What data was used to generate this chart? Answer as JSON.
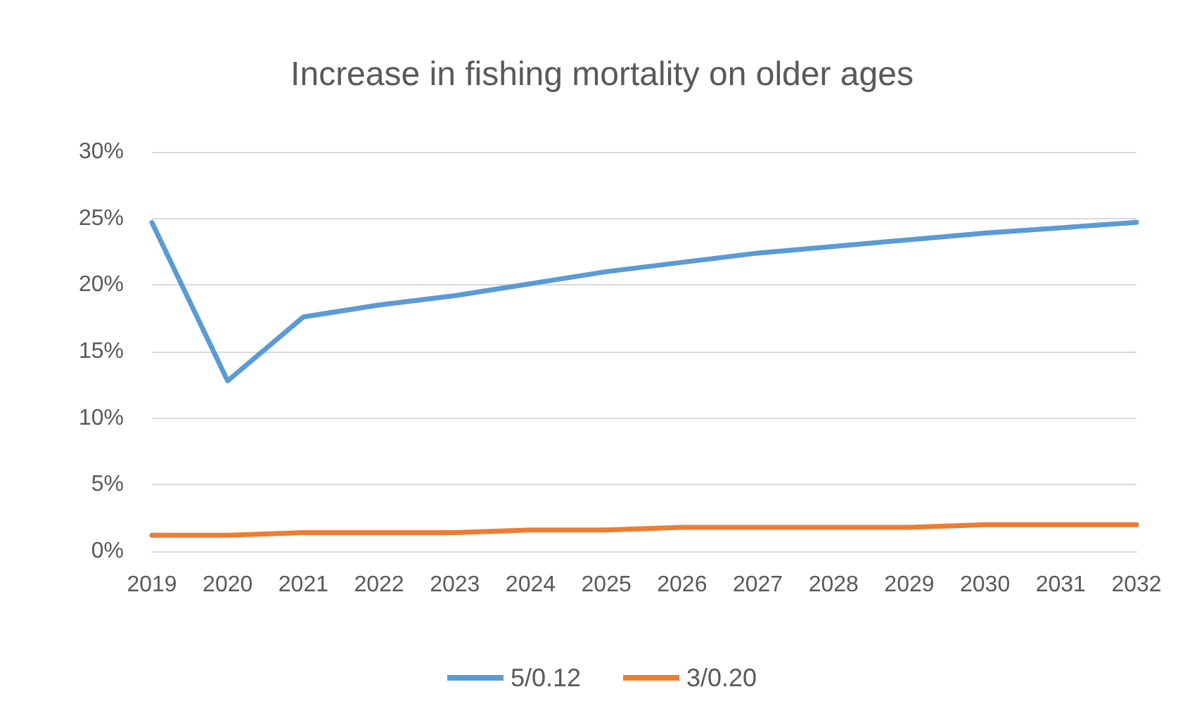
{
  "chart_data": {
    "type": "line",
    "title": "Increase in fishing mortality on older ages",
    "categories": [
      "2019",
      "2020",
      "2021",
      "2022",
      "2023",
      "2024",
      "2025",
      "2026",
      "2027",
      "2028",
      "2029",
      "2030",
      "2031",
      "2032"
    ],
    "series": [
      {
        "name": "5/0.12",
        "color": "#5b9bd5",
        "values": [
          24.7,
          12.8,
          17.6,
          18.5,
          19.2,
          20.1,
          21.0,
          21.7,
          22.4,
          22.9,
          23.4,
          23.9,
          24.3,
          24.7
        ]
      },
      {
        "name": "3/0.20",
        "color": "#ed7d31",
        "values": [
          1.2,
          1.2,
          1.4,
          1.4,
          1.4,
          1.6,
          1.6,
          1.8,
          1.8,
          1.8,
          1.8,
          2.0,
          2.0,
          2.0
        ]
      }
    ],
    "ylim": [
      0,
      30
    ],
    "yticks": [
      {
        "value": 0,
        "label": "0%"
      },
      {
        "value": 5,
        "label": "5%"
      },
      {
        "value": 10,
        "label": "10%"
      },
      {
        "value": 15,
        "label": "15%"
      },
      {
        "value": 20,
        "label": "20%"
      },
      {
        "value": 25,
        "label": "25%"
      },
      {
        "value": 30,
        "label": "30%"
      }
    ],
    "grid": "y",
    "legend": "bottom",
    "marker": "none",
    "line_style": "solid"
  }
}
